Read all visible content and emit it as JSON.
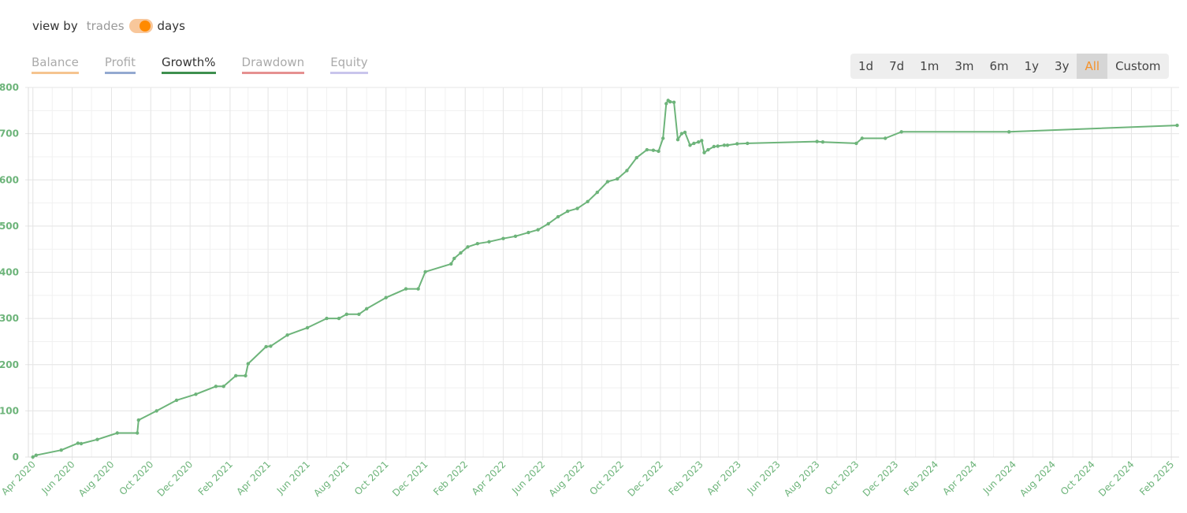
{
  "view_by": {
    "label": "view by",
    "option_off": "trades",
    "option_on": "days"
  },
  "tabs": [
    {
      "label": "Balance",
      "color": "#f5c48f",
      "active": false
    },
    {
      "label": "Profit",
      "color": "#93a9d0",
      "active": false
    },
    {
      "label": "Growth%",
      "color": "#3e8f4f",
      "active": true
    },
    {
      "label": "Drawdown",
      "color": "#e59090",
      "active": false
    },
    {
      "label": "Equity",
      "color": "#c9c5ec",
      "active": false
    }
  ],
  "ranges": [
    {
      "label": "1d"
    },
    {
      "label": "7d"
    },
    {
      "label": "1m"
    },
    {
      "label": "3m"
    },
    {
      "label": "6m"
    },
    {
      "label": "1y"
    },
    {
      "label": "3y"
    },
    {
      "label": "All",
      "active": true
    },
    {
      "label": "Custom"
    }
  ],
  "colors": {
    "line": "#6db47a",
    "axis_text": "#6db47a",
    "grid": "#e6e6e6"
  },
  "chart_data": {
    "type": "line",
    "title": "",
    "xlabel": "",
    "ylabel": "",
    "ylim": [
      0,
      800
    ],
    "yticks": [
      "0",
      "100",
      "200",
      "300",
      "400",
      "500",
      "600",
      "700",
      "800"
    ],
    "xticks": [
      "Apr 2020",
      "Jun 2020",
      "Aug 2020",
      "Oct 2020",
      "Dec 2020",
      "Feb 2021",
      "Apr 2021",
      "Jun 2021",
      "Aug 2021",
      "Oct 2021",
      "Dec 2021",
      "Feb 2022",
      "Apr 2022",
      "Jun 2022",
      "Aug 2022",
      "Oct 2022",
      "Dec 2022",
      "Feb 2023",
      "Apr 2023",
      "Jun 2023",
      "Aug 2023",
      "Oct 2023",
      "Dec 2023",
      "Feb 2024",
      "Apr 2024",
      "Jun 2024",
      "Aug 2024",
      "Oct 2024",
      "Dec 2024",
      "Feb 2025"
    ],
    "grid": true,
    "series": [
      {
        "x": [
          "2020-04-01",
          "2020-04-06",
          "2020-05-15",
          "2020-06-10",
          "2020-06-15",
          "2020-07-10",
          "2020-08-10",
          "2020-09-10",
          "2020-09-12",
          "2020-10-10",
          "2020-11-10",
          "2020-12-10",
          "2021-01-10",
          "2021-01-22",
          "2021-02-10",
          "2021-02-25",
          "2021-03-01",
          "2021-03-29",
          "2021-04-05",
          "2021-05-01",
          "2021-06-01",
          "2021-07-01",
          "2021-07-20",
          "2021-08-01",
          "2021-08-20",
          "2021-09-01",
          "2021-10-01",
          "2021-11-01",
          "2021-11-20",
          "2021-12-01",
          "2022-01-10",
          "2022-01-15",
          "2022-01-25",
          "2022-02-05",
          "2022-02-20",
          "2022-03-10",
          "2022-04-01",
          "2022-04-20",
          "2022-05-10",
          "2022-05-25",
          "2022-06-10",
          "2022-06-25",
          "2022-07-10",
          "2022-07-25",
          "2022-08-10",
          "2022-08-25",
          "2022-09-10",
          "2022-09-25",
          "2022-10-10",
          "2022-10-25",
          "2022-11-10",
          "2022-11-20",
          "2022-11-28",
          "2022-12-05",
          "2022-12-10",
          "2022-12-13",
          "2022-12-16",
          "2022-12-22",
          "2022-12-28",
          "2023-01-03",
          "2023-01-08",
          "2023-01-16",
          "2023-01-22",
          "2023-01-29",
          "2023-02-03",
          "2023-02-07",
          "2023-02-13",
          "2023-02-22",
          "2023-02-28",
          "2023-03-10",
          "2023-03-15",
          "2023-03-30",
          "2023-04-15",
          "2023-08-01",
          "2023-08-10",
          "2023-10-01",
          "2023-10-10",
          "2023-11-15",
          "2023-12-10",
          "2024-05-25",
          "2025-02-10"
        ],
        "values": [
          0,
          4,
          15,
          30,
          29,
          38,
          52,
          52,
          80,
          100,
          123,
          136,
          153,
          153,
          176,
          176,
          202,
          239,
          240,
          264,
          280,
          300,
          300,
          309,
          309,
          321,
          345,
          364,
          364,
          401,
          418,
          430,
          442,
          455,
          462,
          466,
          473,
          478,
          486,
          492,
          505,
          520,
          532,
          538,
          553,
          573,
          596,
          602,
          620,
          648,
          665,
          664,
          662,
          690,
          765,
          772,
          769,
          768,
          687,
          700,
          703,
          675,
          679,
          682,
          685,
          659,
          665,
          672,
          673,
          675,
          675,
          678,
          679,
          683,
          682,
          679,
          690,
          690,
          704,
          704,
          718
        ]
      }
    ]
  }
}
